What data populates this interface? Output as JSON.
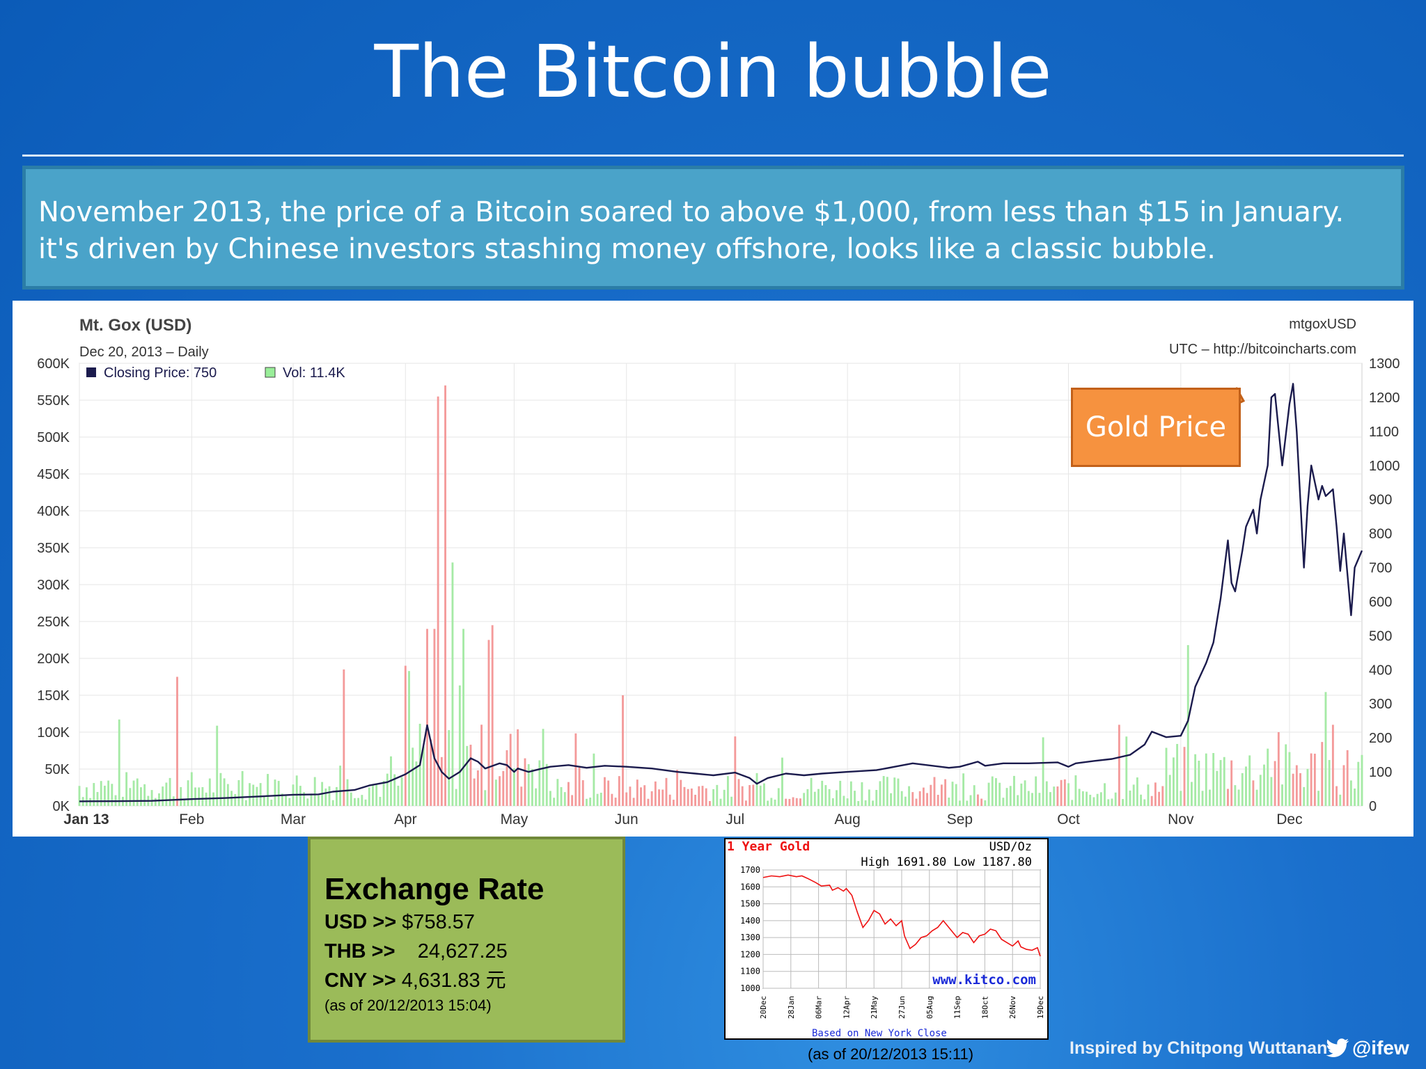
{
  "slide": {
    "title": "The Bitcoin bubble",
    "intro": "November 2013, the price of a Bitcoin soared to above $1,000, from less than $15 in January. it's driven by Chinese investors stashing money offshore, looks like a classic bubble.",
    "callout": "Gold Price",
    "credit": "Inspired by Chitpong Wuttanan",
    "twitter_handle": "@ifew",
    "twitter_icon": "twitter-bird-icon",
    "background_color": "#0b5bb8",
    "intro_box_color": "#4aa3c9",
    "callout_color": "#f6923f",
    "exchange_box_color": "#9bbb59"
  },
  "exchange": {
    "title": "Exchange Rate",
    "rows": [
      {
        "label": "USD >>",
        "value": " $758.57"
      },
      {
        "label": "THB >>",
        "value": "    24,627.25"
      },
      {
        "label": "CNY >>",
        "value": " 4,631.83 元"
      }
    ],
    "note": "(as of 20/12/2013 15:04)"
  },
  "gold_caption": "(as of 20/12/2013 15:11)",
  "chart_data": [
    {
      "type": "line",
      "title": "Mt. Gox (USD)",
      "subtitle": "Dec 20, 2013 – Daily",
      "symbol": "mtgoxUSD",
      "source": "UTC – http://bitcoincharts.com",
      "legend": [
        {
          "label": "Closing Price: 750",
          "color": "#1b1b4d"
        },
        {
          "label": "Vol: 11.4K",
          "color": "#99ee99"
        }
      ],
      "legend_position": "top-left",
      "grid": true,
      "x_ticks": [
        "Jan 13",
        "Feb",
        "Mar",
        "Apr",
        "May",
        "Jun",
        "Jul",
        "Aug",
        "Sep",
        "Oct",
        "Nov",
        "Dec"
      ],
      "x_range_days": [
        0,
        354
      ],
      "y_left_ticks": [
        "0K",
        "50K",
        "100K",
        "150K",
        "200K",
        "250K",
        "300K",
        "350K",
        "400K",
        "450K",
        "500K",
        "550K",
        "600K"
      ],
      "y_left_range": [
        0,
        600000
      ],
      "y_right_ticks": [
        "0",
        "100",
        "200",
        "300",
        "400",
        "500",
        "600",
        "700",
        "800",
        "900",
        "1000",
        "1100",
        "1200",
        "1300"
      ],
      "y_right_range": [
        0,
        1300
      ],
      "series": [
        {
          "name": "Closing Price",
          "axis": "right",
          "x": [
            0,
            10,
            20,
            31,
            40,
            50,
            59,
            66,
            70,
            76,
            80,
            85,
            90,
            94,
            96,
            98,
            100,
            102,
            105,
            108,
            110,
            112,
            116,
            118,
            120,
            121,
            124,
            127,
            130,
            135,
            140,
            145,
            151,
            158,
            165,
            170,
            175,
            181,
            185,
            187,
            190,
            195,
            200,
            205,
            212,
            220,
            230,
            240,
            243,
            248,
            250,
            255,
            262,
            270,
            273,
            275,
            280,
            285,
            290,
            294,
            296,
            298,
            300,
            304,
            306,
            308,
            311,
            313,
            315,
            317,
            318,
            319,
            321,
            322,
            324,
            325,
            326,
            328,
            329,
            330,
            332,
            334,
            335,
            336,
            337,
            338,
            339,
            340,
            342,
            343,
            344,
            346,
            347,
            348,
            349,
            351,
            352,
            354
          ],
          "values": [
            13.5,
            14,
            15,
            20,
            23,
            28,
            33,
            34,
            42,
            47,
            60,
            70,
            93,
            120,
            237,
            140,
            100,
            80,
            100,
            140,
            130,
            110,
            125,
            120,
            100,
            110,
            100,
            108,
            115,
            120,
            112,
            118,
            115,
            110,
            100,
            95,
            90,
            98,
            82,
            65,
            82,
            95,
            90,
            95,
            100,
            105,
            125,
            112,
            115,
            130,
            118,
            125,
            125,
            128,
            115,
            125,
            132,
            138,
            150,
            180,
            218,
            210,
            202,
            206,
            250,
            350,
            420,
            480,
            610,
            780,
            655,
            630,
            750,
            820,
            870,
            800,
            900,
            1000,
            1200,
            1210,
            1000,
            1180,
            1240,
            1100,
            900,
            700,
            880,
            1000,
            900,
            940,
            910,
            930,
            820,
            690,
            800,
            560,
            700,
            750
          ]
        },
        {
          "name": "Vol",
          "axis": "left",
          "style": "bars",
          "note": "daily volume bars; red on down days, green on up days",
          "spikes": [
            {
              "x": 99,
              "value": 555000,
              "color": "red"
            },
            {
              "x": 101,
              "value": 570000,
              "color": "red"
            },
            {
              "x": 103,
              "value": 330000,
              "color": "green"
            },
            {
              "x": 96,
              "value": 240000,
              "color": "red"
            },
            {
              "x": 98,
              "value": 240000,
              "color": "red"
            },
            {
              "x": 114,
              "value": 245000,
              "color": "red"
            },
            {
              "x": 113,
              "value": 225000,
              "color": "red"
            },
            {
              "x": 106,
              "value": 240000,
              "color": "green"
            },
            {
              "x": 27,
              "value": 175000,
              "color": "red"
            },
            {
              "x": 73,
              "value": 185000,
              "color": "red"
            },
            {
              "x": 90,
              "value": 190000,
              "color": "red"
            },
            {
              "x": 150,
              "value": 150000,
              "color": "red"
            },
            {
              "x": 287,
              "value": 110000,
              "color": "red"
            },
            {
              "x": 346,
              "value": 110000,
              "color": "red"
            },
            {
              "x": 331,
              "value": 100000,
              "color": "red"
            },
            {
              "x": 305,
              "value": 80000,
              "color": "red"
            }
          ]
        }
      ]
    },
    {
      "type": "line",
      "title": "1 Year Gold",
      "unit": "USD/Oz",
      "high_low": "High 1691.80 Low 1187.80",
      "watermark": "www.kitco.com",
      "footer": "Based on New York Close",
      "x_ticks": [
        "20Dec",
        "28Jan",
        "06Mar",
        "12Apr",
        "21May",
        "27Jun",
        "05Aug",
        "11Sep",
        "18Oct",
        "26Nov",
        "19Dec"
      ],
      "y_ticks": [
        "1700",
        "1600",
        "1500",
        "1400",
        "1300",
        "1200",
        "1100",
        "1000"
      ],
      "y_range": [
        1000,
        1700
      ],
      "grid": true,
      "series": [
        {
          "name": "Gold",
          "x": [
            0,
            3,
            6,
            9,
            12,
            14,
            16,
            19,
            21,
            24,
            25,
            27,
            29,
            30,
            32,
            34,
            36,
            38,
            40,
            42,
            44,
            46,
            48,
            50,
            51,
            53,
            55,
            57,
            59,
            61,
            63,
            65,
            66,
            68,
            70,
            72,
            74,
            76,
            78,
            80,
            82,
            84,
            86,
            88,
            90,
            92,
            93,
            95,
            97,
            99,
            100
          ],
          "values": [
            1655,
            1665,
            1660,
            1670,
            1660,
            1665,
            1650,
            1625,
            1605,
            1610,
            1580,
            1595,
            1575,
            1590,
            1550,
            1450,
            1360,
            1400,
            1460,
            1440,
            1380,
            1410,
            1370,
            1400,
            1310,
            1235,
            1260,
            1300,
            1310,
            1340,
            1360,
            1400,
            1380,
            1340,
            1300,
            1330,
            1320,
            1270,
            1310,
            1320,
            1350,
            1340,
            1290,
            1270,
            1250,
            1280,
            1245,
            1230,
            1225,
            1240,
            1190
          ]
        }
      ]
    }
  ]
}
